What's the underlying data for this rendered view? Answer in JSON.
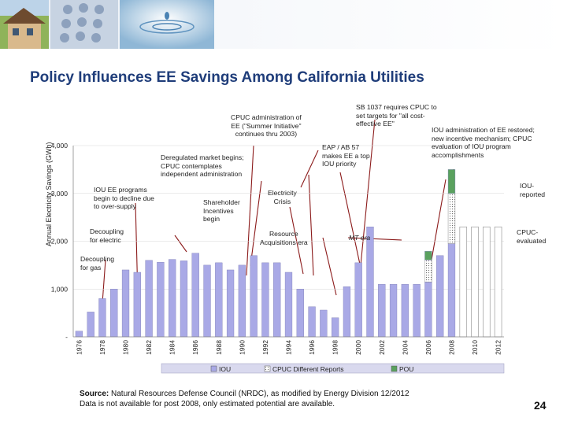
{
  "slide": {
    "title": "Policy Influences EE Savings Among California Utilities",
    "page_number": "24",
    "source_label": "Source:",
    "source_text": " Natural Resources Defense Council (NRDC), as modified by Energy Division 12/2012",
    "source_note": "Data is not available for post 2008, only estimated potential are available."
  },
  "annotations": {
    "cpuc_summer": [
      "CPUC administration of",
      "EE (\"Summer Initiative\"",
      "continues thru 2003)"
    ],
    "sb1037": [
      "SB 1037 requires CPUC to",
      "set targets for \"all cost-",
      "effective EE\""
    ],
    "iou_restored": [
      "IOU administration of EE restored;",
      "new incentive mechanism; CPUC",
      "evaluation of IOU program",
      "accomplishments"
    ],
    "eap": [
      "EAP / AB 57",
      "makes EE a top",
      "IOU priority"
    ],
    "dereg": [
      "Deregulated market begins;",
      "CPUC contemplates",
      "independent administration"
    ],
    "iou_decline": [
      "IOU EE programs",
      "begin to decline due",
      "to over-supply"
    ],
    "shareholder": [
      "Shareholder",
      "Incentives",
      "begin"
    ],
    "crisis": [
      "Electricity",
      "Crisis"
    ],
    "decoupling_electric": [
      "Decoupling",
      "for electric"
    ],
    "resource": [
      "Resource",
      "Acquisitions era"
    ],
    "mt_era": "MT era",
    "iou_reported": [
      "IOU-",
      "reported"
    ],
    "cpuc_evaluated": [
      "CPUC-",
      "evaluated"
    ],
    "decoupling_gas": [
      "Decoupling",
      "for gas"
    ]
  },
  "chart_data": {
    "type": "bar",
    "title": "",
    "xlabel": "",
    "ylabel": "Annual Electricity Savings (GWh)",
    "ylim": [
      0,
      4000
    ],
    "y_ticks": [
      0,
      1000,
      2000,
      3000,
      4000
    ],
    "y_tick_labels": [
      "-",
      "1,000",
      "2,000",
      "3,000",
      "4,000"
    ],
    "categories": [
      "1976",
      "1977",
      "1978",
      "1979",
      "1980",
      "1981",
      "1982",
      "1983",
      "1984",
      "1985",
      "1986",
      "1987",
      "1988",
      "1989",
      "1990",
      "1991",
      "1992",
      "1993",
      "1994",
      "1995",
      "1996",
      "1997",
      "1998",
      "1999",
      "2000",
      "2001",
      "2002",
      "2003",
      "2004",
      "2005",
      "2006",
      "2007",
      "2008",
      "2009",
      "2010",
      "2011",
      "2012"
    ],
    "x_tick_labels": [
      "1976",
      "1978",
      "1980",
      "1982",
      "1984",
      "1986",
      "1988",
      "1990",
      "1992",
      "1994",
      "1996",
      "1998",
      "2000",
      "2002",
      "2004",
      "2006",
      "2008",
      "2010",
      "2012"
    ],
    "series": [
      {
        "name": "IOU",
        "color": "#a9a9e6",
        "values": [
          120,
          520,
          800,
          1000,
          1400,
          1350,
          1600,
          1560,
          1620,
          1590,
          1750,
          1500,
          1550,
          1400,
          1500,
          1700,
          1550,
          1550,
          1350,
          1000,
          630,
          560,
          400,
          1050,
          1550,
          2300,
          1100,
          1100,
          1100,
          1100,
          1150,
          1700,
          1950,
          0,
          0,
          0,
          0
        ]
      },
      {
        "name": "CPUC Different Reports",
        "color": "#ffffff",
        "pattern": "dotted",
        "values": [
          0,
          0,
          0,
          0,
          0,
          0,
          0,
          0,
          0,
          0,
          0,
          0,
          0,
          0,
          0,
          0,
          0,
          0,
          0,
          0,
          0,
          0,
          0,
          0,
          0,
          0,
          0,
          0,
          0,
          0,
          460,
          0,
          1050,
          0,
          0,
          0,
          0
        ]
      },
      {
        "name": "POU",
        "color": "#5aa15e",
        "values": [
          0,
          0,
          0,
          0,
          0,
          0,
          0,
          0,
          0,
          0,
          0,
          0,
          0,
          0,
          0,
          0,
          0,
          0,
          0,
          0,
          0,
          0,
          0,
          0,
          0,
          0,
          0,
          0,
          0,
          0,
          180,
          0,
          500,
          0,
          0,
          0,
          0
        ]
      }
    ],
    "placeholder_years": [
      "2009",
      "2010",
      "2011",
      "2012"
    ],
    "placeholder_value": 2300,
    "legend_position": "bottom"
  }
}
